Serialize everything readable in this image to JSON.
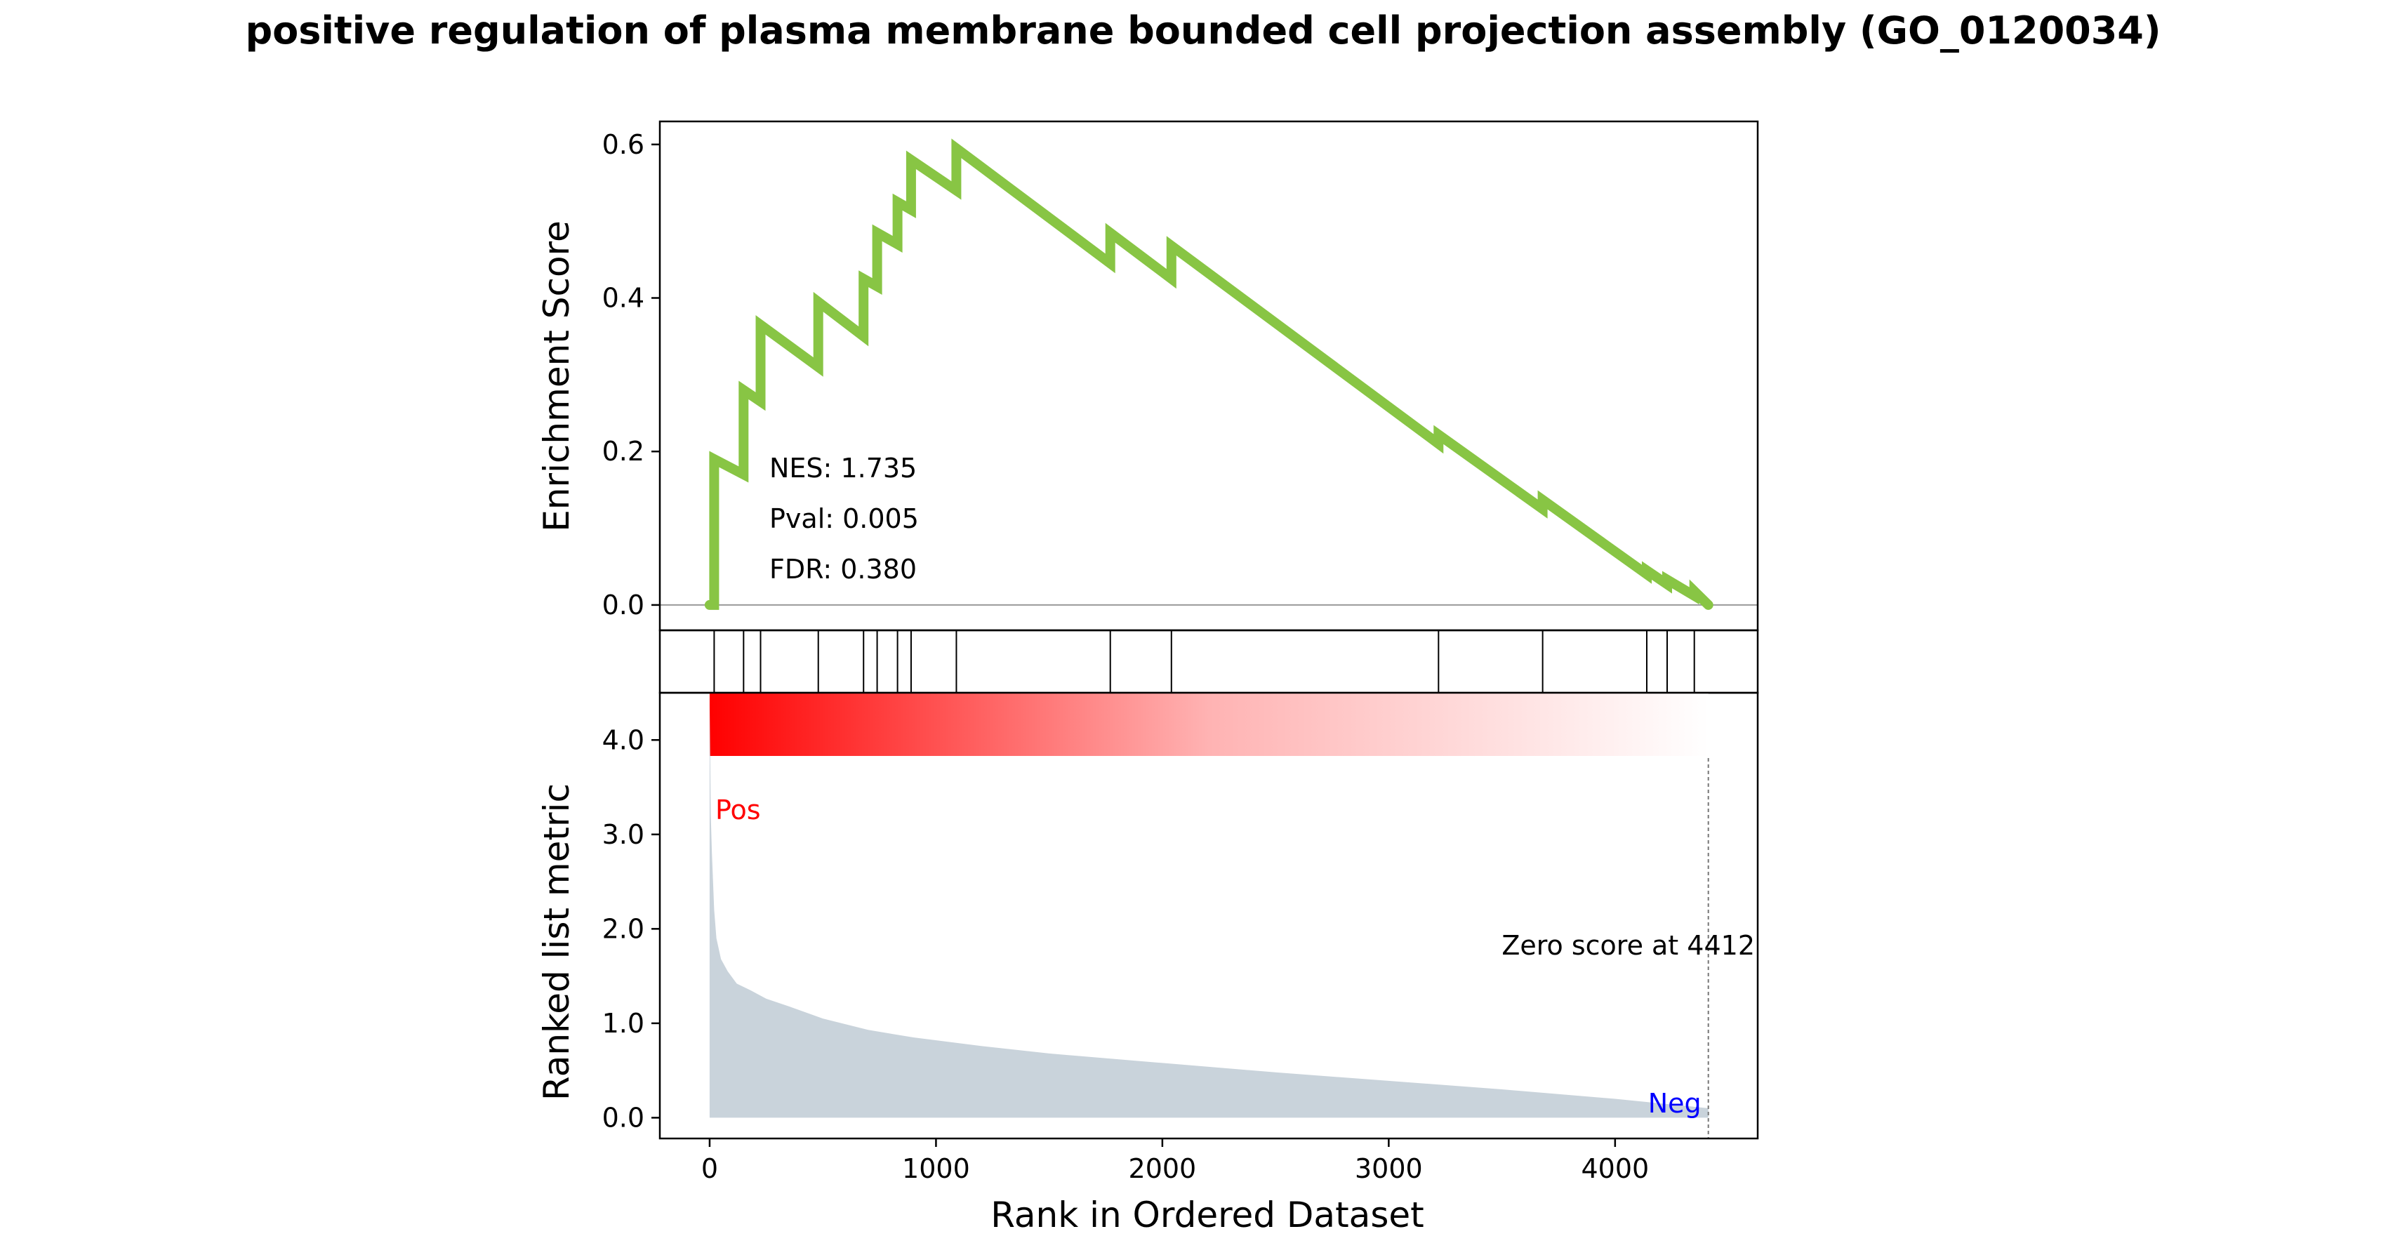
{
  "chart_data": {
    "type": "line",
    "title": "positive regulation of plasma membrane bounded cell projection assembly (GO_0120034)",
    "xlabel": "Rank in Ordered Dataset",
    "xlim": [
      -220,
      4630
    ],
    "x_ticks": [
      0,
      1000,
      2000,
      3000,
      4000
    ],
    "x_tick_labels": [
      "0",
      "1000",
      "2000",
      "3000",
      "4000"
    ],
    "enrichment": {
      "ylabel": "Enrichment Score",
      "ylim": [
        -0.033,
        0.63
      ],
      "y_ticks": [
        0.0,
        0.2,
        0.4,
        0.6
      ],
      "y_tick_labels": [
        "0.0",
        "0.2",
        "0.4",
        "0.6"
      ],
      "line_color": "#88c544",
      "zero_line_color": "#999999",
      "running_es": {
        "x": [
          0,
          20,
          20,
          150,
          150,
          225,
          225,
          480,
          480,
          680,
          680,
          740,
          740,
          830,
          830,
          890,
          890,
          1090,
          1090,
          1770,
          1770,
          2040,
          2040,
          3220,
          3220,
          3680,
          3680,
          4140,
          4140,
          4230,
          4230,
          4350,
          4350,
          4412
        ],
        "y": [
          0,
          0,
          0.19,
          0.17,
          0.28,
          0.265,
          0.365,
          0.31,
          0.395,
          0.35,
          0.425,
          0.415,
          0.485,
          0.47,
          0.525,
          0.515,
          0.58,
          0.54,
          0.595,
          0.445,
          0.485,
          0.425,
          0.468,
          0.21,
          0.222,
          0.125,
          0.137,
          0.04,
          0.045,
          0.027,
          0.033,
          0.012,
          0.018,
          0
        ]
      },
      "stats": [
        "NES: 1.735",
        "Pval: 0.005",
        "FDR: 0.380"
      ]
    },
    "hits": {
      "positions": [
        20,
        150,
        225,
        480,
        680,
        740,
        830,
        890,
        1090,
        1770,
        2040,
        3220,
        3680,
        4140,
        4230,
        4350
      ],
      "line_color": "#000000"
    },
    "heatmap": {
      "start_color": "#ff0000",
      "end_color": "#ffffff"
    },
    "ranked_metric": {
      "ylabel": "Ranked list metric",
      "ylim": [
        -0.22,
        4.5
      ],
      "y_ticks": [
        0.0,
        1.0,
        2.0,
        3.0,
        4.0
      ],
      "y_tick_labels": [
        "0.0",
        "1.0",
        "2.0",
        "3.0",
        "4.0"
      ],
      "fill_color": "#c9d3db",
      "x": [
        0,
        5,
        10,
        20,
        30,
        50,
        80,
        120,
        180,
        250,
        350,
        500,
        700,
        900,
        1200,
        1500,
        2000,
        2500,
        3000,
        3500,
        4000,
        4412
      ],
      "y": [
        4.45,
        3.2,
        2.8,
        2.2,
        1.9,
        1.68,
        1.55,
        1.42,
        1.35,
        1.26,
        1.18,
        1.05,
        0.93,
        0.85,
        0.76,
        0.68,
        0.58,
        0.48,
        0.39,
        0.3,
        0.2,
        0.1
      ],
      "zero_score_rank": 4412,
      "zero_score_label": "Zero score at 4412",
      "pos_label": "Pos",
      "pos_color": "#ff0000",
      "neg_label": "Neg",
      "neg_color": "#0000ff",
      "vline_color": "#777777"
    }
  }
}
